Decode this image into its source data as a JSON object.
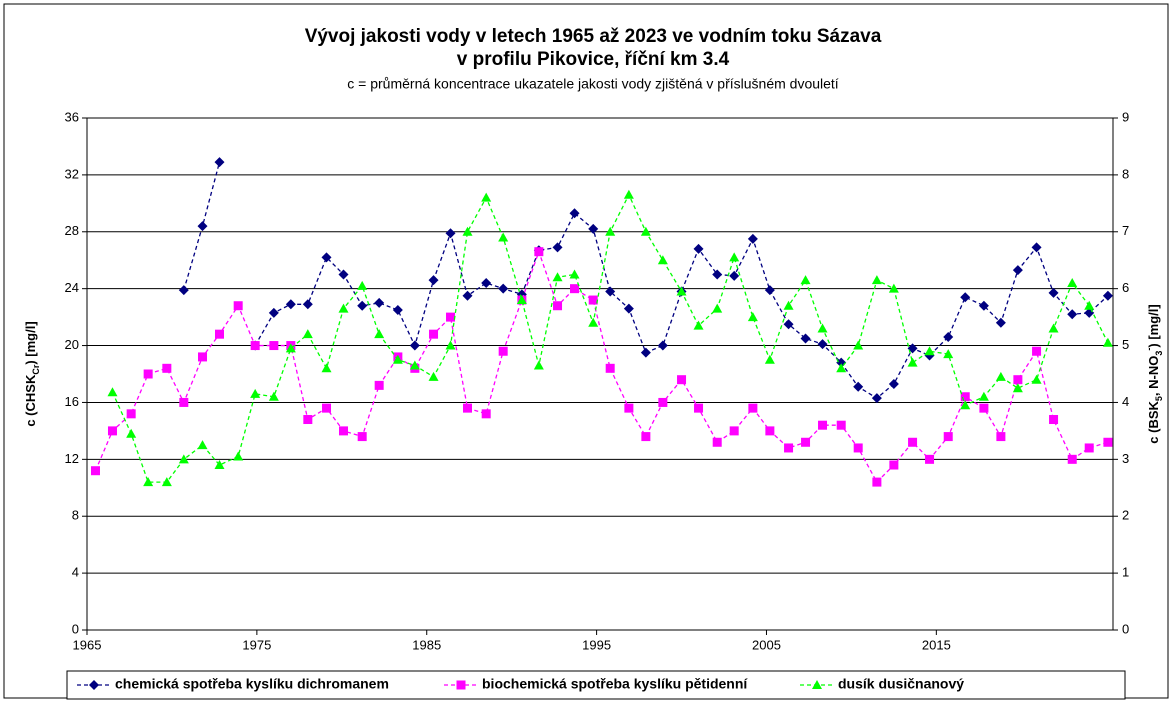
{
  "chart_data": {
    "type": "line",
    "title": "Vývoj jakosti vody v letech 1965 až 2023 ve vodním toku Sázava",
    "title2": "v profilu Pikovice, říční km 3.4",
    "subtitle": "c = průměrná koncentrace ukazatele jakosti vody zjištěná v příslušném dvouletí",
    "y_label": [
      {
        "text": "c (CHSK"
      },
      {
        "text": "Cr",
        "sub": true
      },
      {
        "text": ") [mg/l]"
      }
    ],
    "y2_label": [
      {
        "text": "c (BSK"
      },
      {
        "text": "5",
        "sub": true
      },
      {
        "text": ", N-NO"
      },
      {
        "text": "3",
        "sub": true
      },
      {
        "text": "-",
        "sup": true
      },
      {
        "text": ") [mg/l]"
      }
    ],
    "x": [
      1965.5,
      1966.5,
      1967.6,
      1968.6,
      1969.7,
      1970.7,
      1971.8,
      1972.8,
      1973.9,
      1974.9,
      1976.0,
      1977.0,
      1978.0,
      1979.1,
      1980.1,
      1981.2,
      1982.2,
      1983.3,
      1984.3,
      1985.4,
      1986.4,
      1987.4,
      1988.5,
      1989.5,
      1990.6,
      1991.6,
      1992.7,
      1993.7,
      1994.8,
      1995.8,
      1996.9,
      1997.9,
      1998.9,
      2000.0,
      2001.0,
      2002.1,
      2003.1,
      2004.2,
      2005.2,
      2006.3,
      2007.3,
      2008.3,
      2009.4,
      2010.4,
      2011.5,
      2012.5,
      2013.6,
      2014.6,
      2015.7,
      2016.7,
      2017.8,
      2018.8,
      2019.8,
      2020.9,
      2021.9,
      2023.0,
      2024.0,
      2025.1
    ],
    "xlim": [
      1965,
      2025.4
    ],
    "xticks": [
      1965,
      1975,
      1985,
      1995,
      2005,
      2015
    ],
    "ylim": [
      0,
      36
    ],
    "yticks": [
      0,
      4,
      8,
      12,
      16,
      20,
      24,
      28,
      32,
      36
    ],
    "y2lim": [
      0,
      9
    ],
    "y2ticks": [
      0,
      1,
      2,
      3,
      4,
      5,
      6,
      7,
      8,
      9
    ],
    "grid": true,
    "series": [
      {
        "name": "chemická spotřeba kyslíku dichromanem",
        "color": "#000080",
        "marker": "diamond",
        "values": [
          null,
          null,
          null,
          null,
          null,
          23.9,
          28.4,
          32.9,
          null,
          20,
          22.3,
          22.9,
          22.9,
          26.2,
          25,
          22.8,
          23,
          22.5,
          20,
          24.6,
          27.9,
          23.5,
          24.4,
          24,
          23.6,
          26.7,
          26.9,
          29.3,
          28.2,
          23.8,
          22.6,
          19.5,
          20,
          23.8,
          26.8,
          25,
          24.9,
          27.5,
          23.9,
          21.5,
          20.5,
          20.1,
          18.8,
          17.1,
          16.3,
          17.3,
          19.8,
          19.3,
          20.6,
          23.4,
          22.8,
          21.6,
          25.3,
          26.9,
          23.7,
          22.2,
          22.3,
          23.5
        ]
      },
      {
        "name": "biochemická spotřeba kyslíku pětidenní",
        "color": "#ff00ff",
        "marker": "square",
        "axis": "y2",
        "values": [
          2.8,
          3.5,
          3.8,
          4.5,
          4.6,
          4,
          4.8,
          5.2,
          5.7,
          5,
          5,
          5,
          3.7,
          3.9,
          3.5,
          3.4,
          4.3,
          4.8,
          4.6,
          5.2,
          5.5,
          3.9,
          3.8,
          4.9,
          5.8,
          6.65,
          5.7,
          6,
          5.8,
          4.6,
          3.9,
          3.4,
          4,
          4.4,
          3.9,
          3.3,
          3.5,
          3.9,
          3.5,
          3.2,
          3.3,
          3.6,
          3.6,
          3.2,
          2.6,
          2.9,
          3.3,
          3,
          3.4,
          4.1,
          3.9,
          3.4,
          4.4,
          4.9,
          3.7,
          3,
          3.2,
          3.3
        ]
      },
      {
        "name": "dusík dusičnanový",
        "color": "#00ff00",
        "marker": "triangle",
        "axis": "y2",
        "values": [
          null,
          4.18,
          3.45,
          2.6,
          2.6,
          3.0,
          3.25,
          2.9,
          3.05,
          4.15,
          4.1,
          4.95,
          5.2,
          4.6,
          5.65,
          6.05,
          5.2,
          4.75,
          4.65,
          4.45,
          5.0,
          7.0,
          7.6,
          6.9,
          5.8,
          4.65,
          6.2,
          6.25,
          5.4,
          7.0,
          7.65,
          7.0,
          6.5,
          5.95,
          5.35,
          5.65,
          6.55,
          5.5,
          4.75,
          5.7,
          6.15,
          5.3,
          4.6,
          5.0,
          6.15,
          6.0,
          4.7,
          4.9,
          4.85,
          3.95,
          4.1,
          4.45,
          4.25,
          4.4,
          5.3,
          6.1,
          5.7,
          5.05
        ]
      }
    ]
  }
}
